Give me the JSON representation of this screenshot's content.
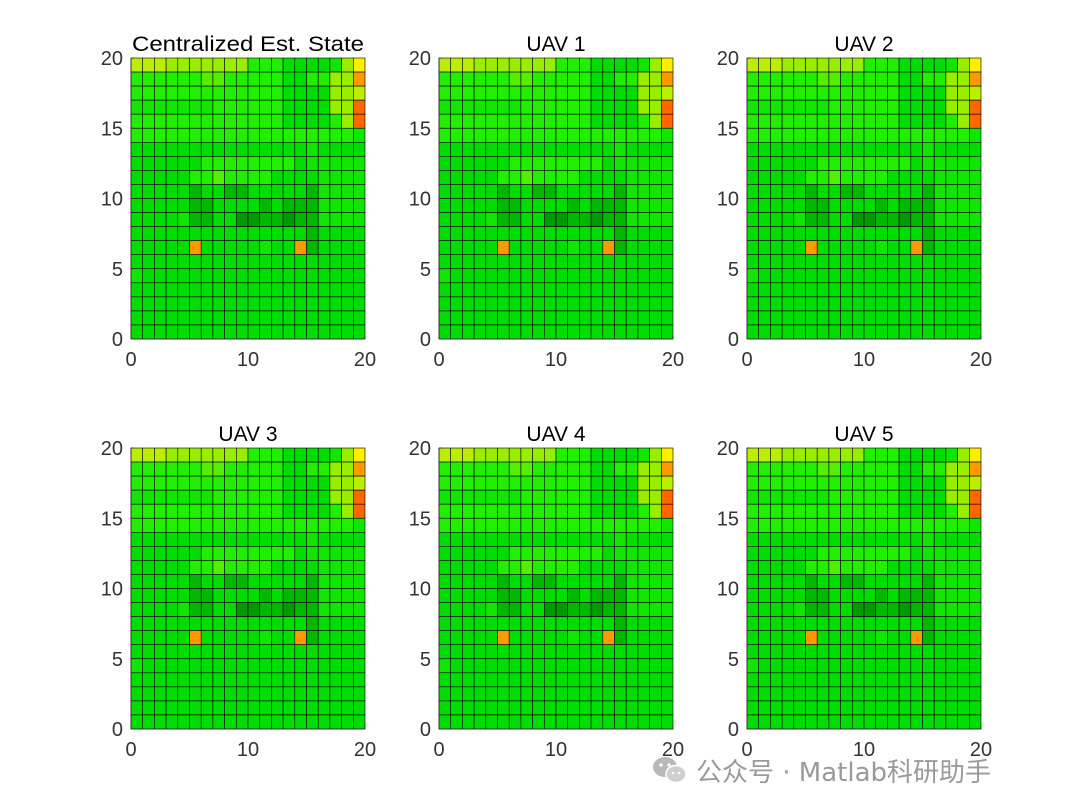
{
  "figure": {
    "background": "#ffffff"
  },
  "colors": {
    "levels": [
      "#00dd00",
      "#11e600",
      "#22ee00",
      "#55ee00",
      "#99ee00",
      "#bbee00",
      "#ffee00",
      "#ff9900",
      "#ff6600",
      "#009900",
      "#00b800"
    ],
    "cell_border": "#000000",
    "axis": "#333333",
    "tick_text": "#333333",
    "title_text": "#000000"
  },
  "chart_data": [
    {
      "type": "heatmap",
      "title": "Centralized Est. State",
      "xlim": [
        0,
        20
      ],
      "ylim": [
        0,
        20
      ],
      "xticks": [
        0,
        10,
        20
      ],
      "yticks": [
        0,
        5,
        10,
        15,
        20
      ],
      "xlabel": "",
      "ylabel": "",
      "grid_levels": [
        "55544444442220000146",
        "22222233222220022447",
        "22222222222220000445",
        "11111112222220000448",
        "22222222222220000248",
        "22222222222222222221",
        "00000000000000010000",
        "00000022222222011111",
        "00000223222200001111",
        "00000A00AA00000A1111",
        "00000AA0000A0AAA1111",
        "00001AA0099AA9AA1111",
        "000000000000000A0000",
        "000007000001007A0000",
        "00000000000000000000",
        "10000000000000000000",
        "00000000000000000000",
        "00000000000000000000",
        "00000000000000000000",
        "00000000000000000000"
      ]
    },
    {
      "type": "heatmap",
      "title": "UAV 1",
      "xlim": [
        0,
        20
      ],
      "ylim": [
        0,
        20
      ],
      "xticks": [
        0,
        10,
        20
      ],
      "yticks": [
        0,
        5,
        10,
        15,
        20
      ]
    },
    {
      "type": "heatmap",
      "title": "UAV 2",
      "xlim": [
        0,
        20
      ],
      "ylim": [
        0,
        20
      ],
      "xticks": [
        0,
        10,
        20
      ],
      "yticks": [
        0,
        5,
        10,
        15,
        20
      ]
    },
    {
      "type": "heatmap",
      "title": "UAV 3",
      "xlim": [
        0,
        20
      ],
      "ylim": [
        0,
        20
      ],
      "xticks": [
        0,
        10,
        20
      ],
      "yticks": [
        0,
        5,
        10,
        15,
        20
      ]
    },
    {
      "type": "heatmap",
      "title": "UAV 4",
      "xlim": [
        0,
        20
      ],
      "ylim": [
        0,
        20
      ],
      "xticks": [
        0,
        10,
        20
      ],
      "yticks": [
        0,
        5,
        10,
        15,
        20
      ]
    },
    {
      "type": "heatmap",
      "title": "UAV 5",
      "xlim": [
        0,
        20
      ],
      "ylim": [
        0,
        20
      ],
      "xticks": [
        0,
        10,
        20
      ],
      "yticks": [
        0,
        5,
        10,
        15,
        20
      ]
    }
  ],
  "watermark": {
    "text": "公众号 · Matlab科研助手",
    "icon": "wechat-icon"
  }
}
